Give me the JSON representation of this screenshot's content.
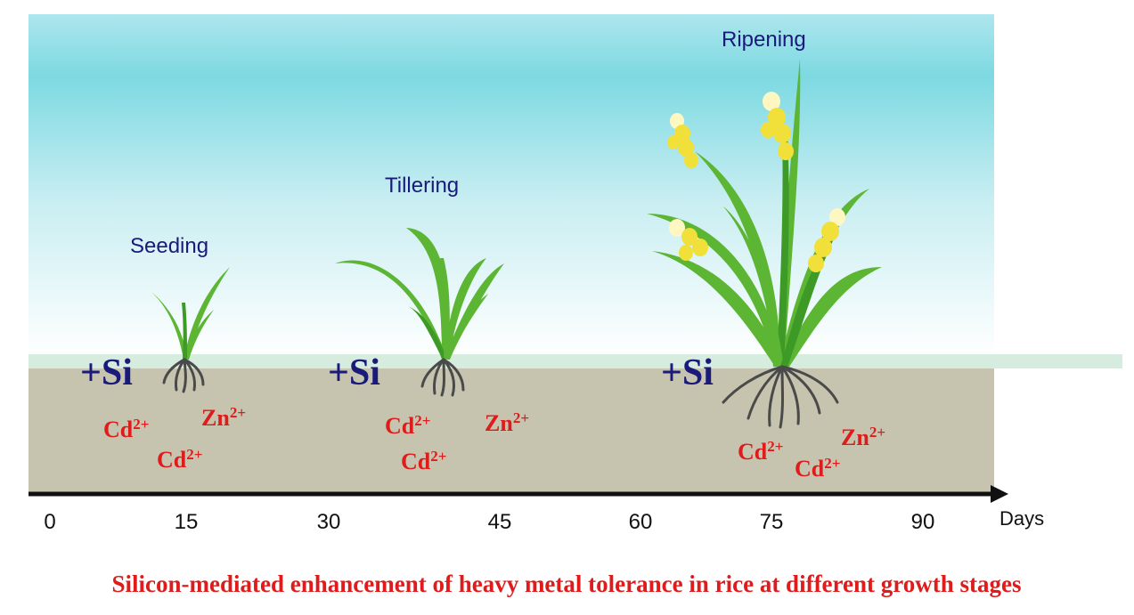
{
  "stages": [
    {
      "label": "Seeding"
    },
    {
      "label": "Tillering"
    },
    {
      "label": "Ripening"
    }
  ],
  "treatment": {
    "label": "+Si"
  },
  "ions": {
    "cd_base": "Cd",
    "cd_charge": "2+",
    "zn_base": "Zn",
    "zn_charge": "2+"
  },
  "axis": {
    "ticks": [
      "0",
      "15",
      "30",
      "45",
      "60",
      "75",
      "90"
    ],
    "unit": "Days"
  },
  "caption": "Silicon-mediated enhancement of heavy metal tolerance in rice at different growth stages",
  "colors": {
    "sky_top": "#7fdde6",
    "sky_bottom": "#ffffff",
    "soil": "#c6c4ae",
    "water_band": "#d6ecdf",
    "leaf": "#5cb533",
    "grain": "#f2e03a",
    "text_stage": "#1a1a7a",
    "text_ion": "#e01b1b"
  },
  "icons": [
    "rice-seedling",
    "rice-tillering-plant",
    "rice-ripening-plant",
    "root-cluster",
    "axis-arrow"
  ]
}
